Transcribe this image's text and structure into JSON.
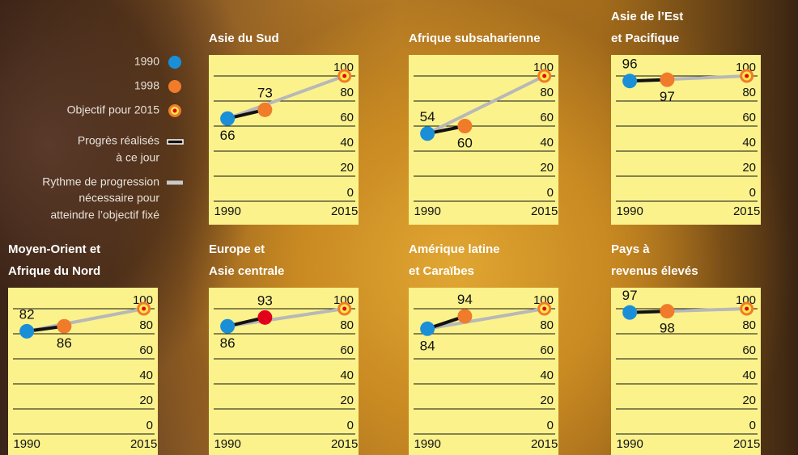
{
  "legend": {
    "items": [
      {
        "lines": [
          "1990"
        ]
      },
      {
        "lines": [
          "1998"
        ]
      },
      {
        "lines": [
          "Objectif pour 2015"
        ]
      },
      {
        "lines": [
          "Progrès réalisés",
          "à ce jour"
        ]
      },
      {
        "lines": [
          "Rythme de progression",
          "nécessaire pour",
          "atteindre l’objectif fixé"
        ]
      }
    ]
  },
  "chart_data": [
    {
      "type": "line",
      "title": [
        "Asie du Sud"
      ],
      "x": [
        1990,
        1998,
        2015
      ],
      "values": [
        66,
        73,
        100
      ],
      "marker_colors": [
        "#1a8fd8",
        "#f07b2a",
        "#f07b2a"
      ],
      "xlim": [
        1986,
        2018
      ],
      "xticks": [
        1990,
        2015
      ],
      "ylim": [
        0,
        100
      ],
      "yticks": [
        0,
        20,
        40,
        60,
        80,
        100
      ],
      "grid": true
    },
    {
      "type": "line",
      "title": [
        "Afrique subsaharienne"
      ],
      "x": [
        1990,
        1998,
        2015
      ],
      "values": [
        54,
        60,
        100
      ],
      "marker_colors": [
        "#1a8fd8",
        "#f07b2a",
        "#f07b2a"
      ],
      "xlim": [
        1986,
        2018
      ],
      "xticks": [
        1990,
        2015
      ],
      "ylim": [
        0,
        100
      ],
      "yticks": [
        0,
        20,
        40,
        60,
        80,
        100
      ],
      "grid": true
    },
    {
      "type": "line",
      "title": [
        "Asie de l’Est",
        "et Pacifique"
      ],
      "x": [
        1990,
        1998,
        2015
      ],
      "values": [
        96,
        97,
        100
      ],
      "marker_colors": [
        "#1a8fd8",
        "#f07b2a",
        "#f07b2a"
      ],
      "xlim": [
        1986,
        2018
      ],
      "xticks": [
        1990,
        2015
      ],
      "ylim": [
        0,
        100
      ],
      "yticks": [
        0,
        20,
        40,
        60,
        80,
        100
      ],
      "grid": true
    },
    {
      "type": "line",
      "title": [
        "Moyen-Orient et",
        "Afrique du Nord"
      ],
      "x": [
        1990,
        1998,
        2015
      ],
      "values": [
        82,
        86,
        100
      ],
      "marker_colors": [
        "#1a8fd8",
        "#f07b2a",
        "#f07b2a"
      ],
      "xlim": [
        1986,
        2018
      ],
      "xticks": [
        1990,
        2015
      ],
      "ylim": [
        0,
        100
      ],
      "yticks": [
        0,
        20,
        40,
        60,
        80,
        100
      ],
      "grid": true
    },
    {
      "type": "line",
      "title": [
        "Europe et",
        "Asie centrale"
      ],
      "x": [
        1990,
        1998,
        2015
      ],
      "values": [
        86,
        93,
        100
      ],
      "marker_colors": [
        "#1a8fd8",
        "#e3001b",
        "#f07b2a"
      ],
      "xlim": [
        1986,
        2018
      ],
      "xticks": [
        1990,
        2015
      ],
      "ylim": [
        0,
        100
      ],
      "yticks": [
        0,
        20,
        40,
        60,
        80,
        100
      ],
      "grid": true
    },
    {
      "type": "line",
      "title": [
        "Amérique latine",
        "et Caraïbes"
      ],
      "x": [
        1990,
        1998,
        2015
      ],
      "values": [
        84,
        94,
        100
      ],
      "marker_colors": [
        "#1a8fd8",
        "#f07b2a",
        "#f07b2a"
      ],
      "xlim": [
        1986,
        2018
      ],
      "xticks": [
        1990,
        2015
      ],
      "ylim": [
        0,
        100
      ],
      "yticks": [
        0,
        20,
        40,
        60,
        80,
        100
      ],
      "grid": true
    },
    {
      "type": "line",
      "title": [
        "Pays à",
        "revenus élevés"
      ],
      "x": [
        1990,
        1998,
        2015
      ],
      "values": [
        97,
        98,
        100
      ],
      "marker_colors": [
        "#1a8fd8",
        "#f07b2a",
        "#f07b2a"
      ],
      "xlim": [
        1986,
        2018
      ],
      "xticks": [
        1990,
        2015
      ],
      "ylim": [
        0,
        100
      ],
      "yticks": [
        0,
        20,
        40,
        60,
        80,
        100
      ],
      "grid": true
    }
  ]
}
